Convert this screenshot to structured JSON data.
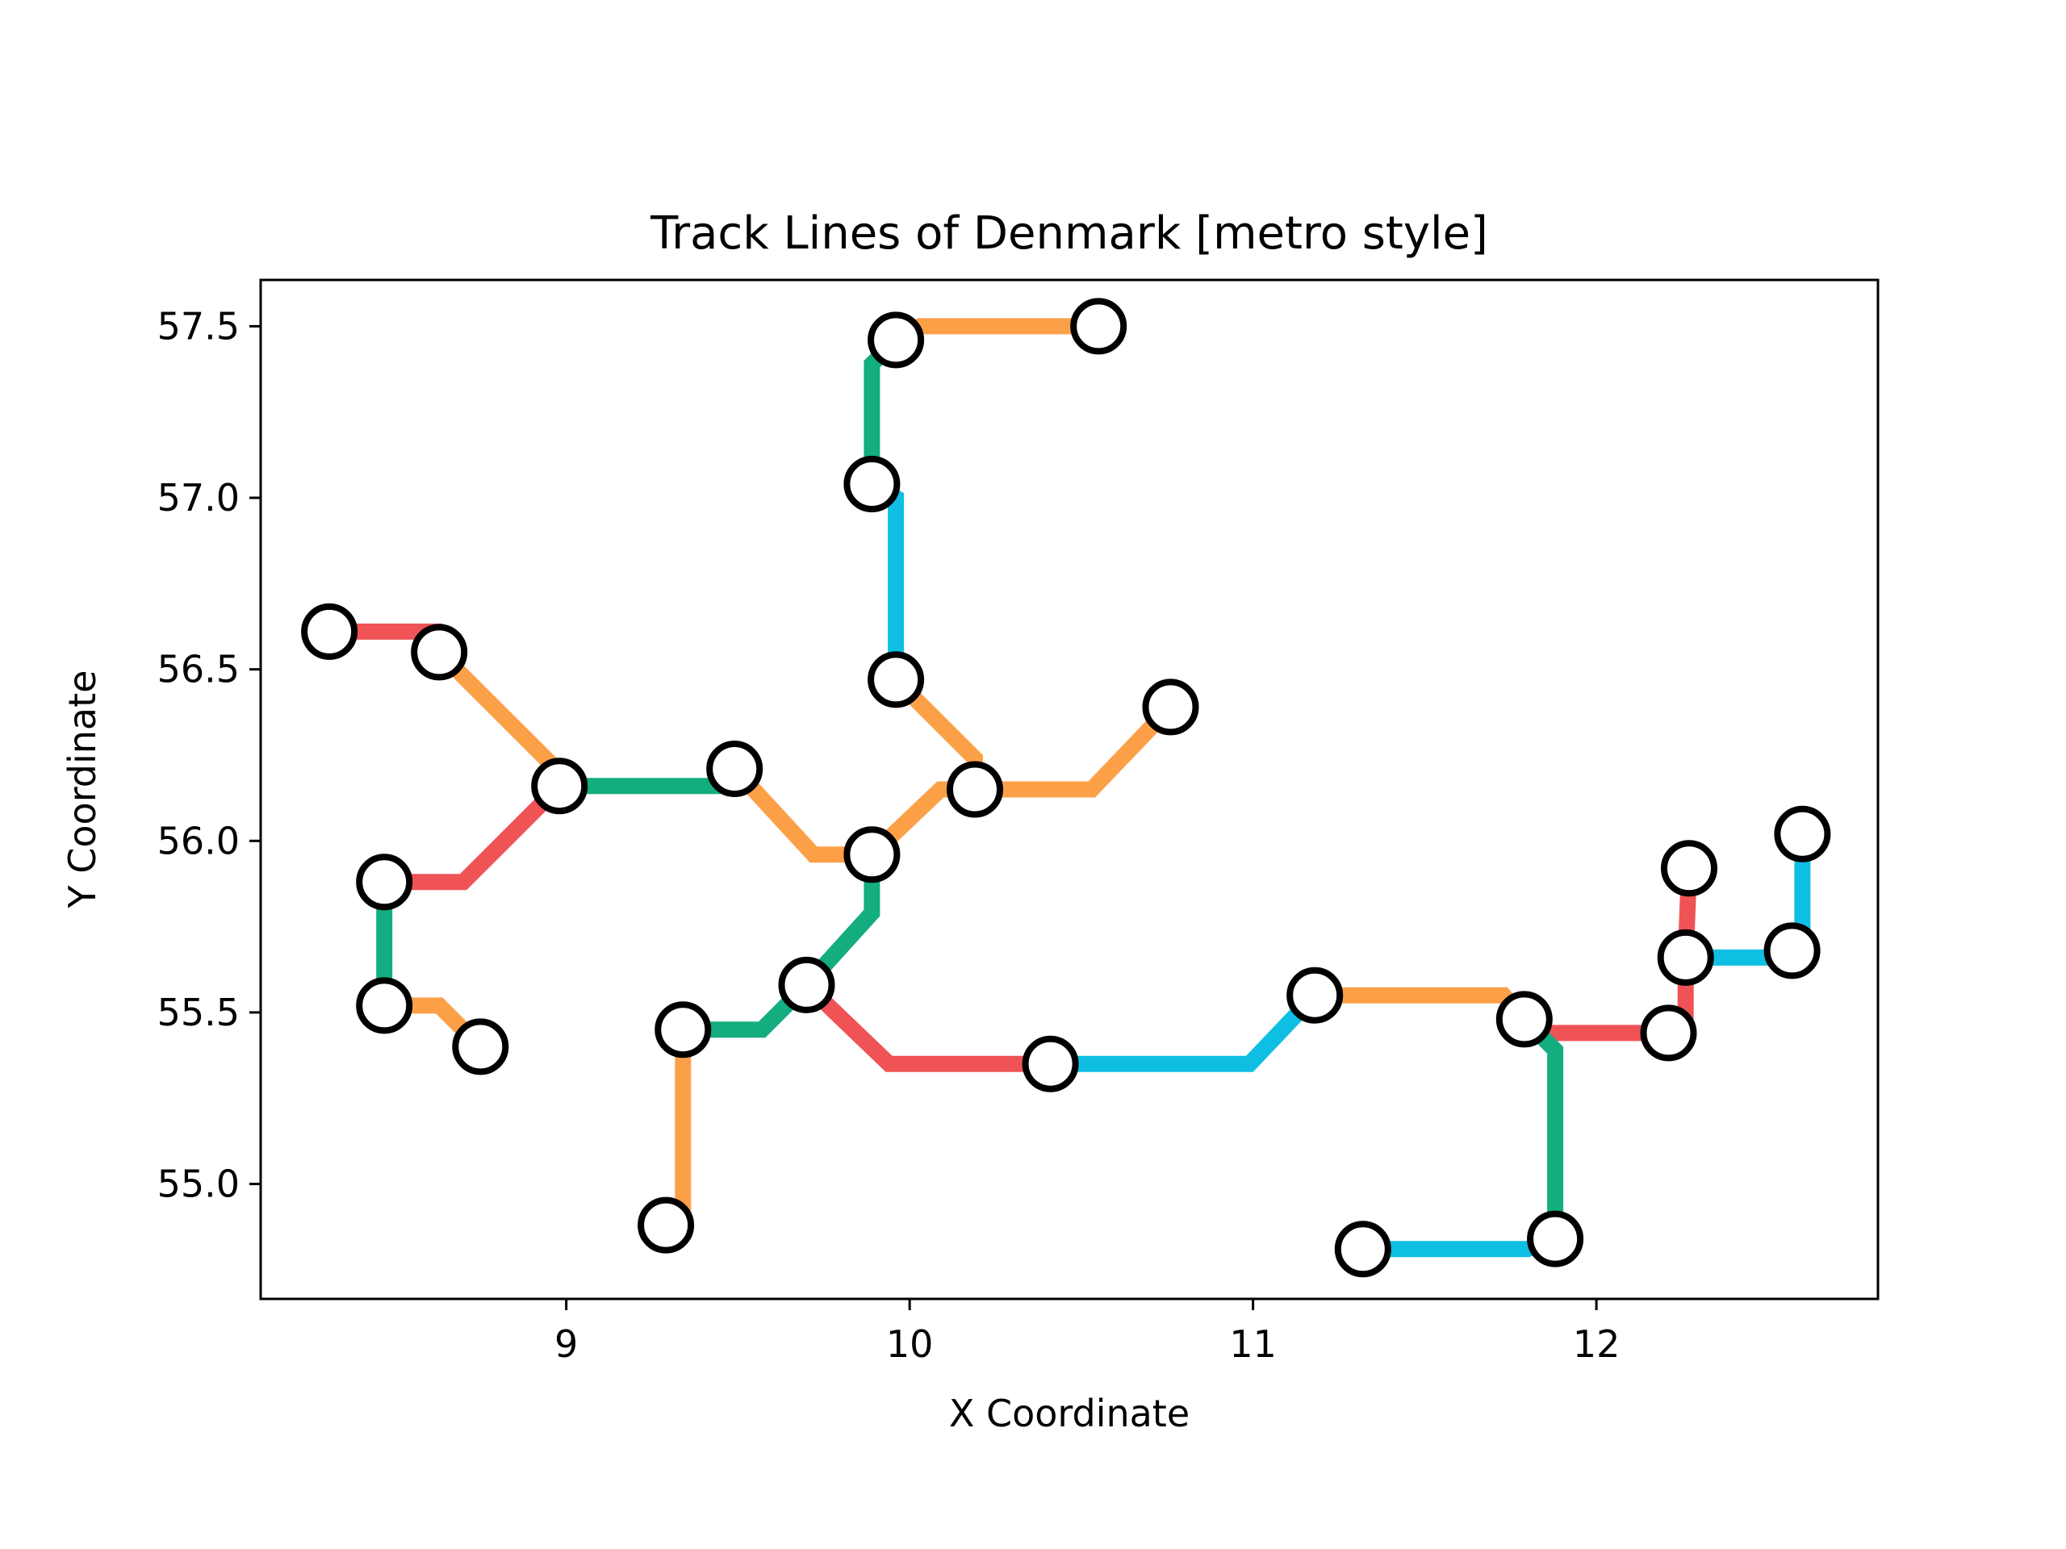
{
  "chart_data": {
    "type": "line",
    "title": "Track Lines of Denmark [metro style]",
    "xlabel": "X Coordinate",
    "ylabel": "Y Coordinate",
    "xlim": [
      8.11,
      12.82
    ],
    "ylim": [
      54.665,
      57.635
    ],
    "xticks": [
      9,
      10,
      11,
      12
    ],
    "yticks": [
      55.0,
      55.5,
      56.0,
      56.5,
      57.0,
      57.5
    ],
    "ytick_labels": [
      "55.0",
      "55.5",
      "56.0",
      "56.5",
      "57.0",
      "57.5"
    ],
    "grid": false,
    "legend": "none",
    "colors": {
      "red": "#ef5356",
      "orange": "#fca048",
      "green": "#13ad80",
      "blue": "#0fbfe3",
      "station_fill": "#ffffff",
      "station_edge": "#000000"
    },
    "segments": [
      {
        "color": "red",
        "points": [
          [
            8.31,
            56.61
          ],
          [
            8.62,
            56.61
          ],
          [
            8.63,
            56.55
          ]
        ]
      },
      {
        "color": "orange",
        "points": [
          [
            8.63,
            56.55
          ],
          [
            8.97,
            56.21
          ],
          [
            8.98,
            56.16
          ]
        ]
      },
      {
        "color": "red",
        "points": [
          [
            8.98,
            56.16
          ],
          [
            8.7,
            55.88
          ],
          [
            8.47,
            55.88
          ]
        ]
      },
      {
        "color": "green",
        "points": [
          [
            8.98,
            56.16
          ],
          [
            9.48,
            56.16
          ],
          [
            9.49,
            56.21
          ]
        ]
      },
      {
        "color": "orange",
        "points": [
          [
            9.49,
            56.21
          ],
          [
            9.72,
            55.96
          ],
          [
            9.89,
            55.96
          ]
        ]
      },
      {
        "color": "green",
        "points": [
          [
            8.47,
            55.88
          ],
          [
            8.47,
            55.52
          ]
        ]
      },
      {
        "color": "orange",
        "points": [
          [
            8.47,
            55.52
          ],
          [
            8.63,
            55.52
          ],
          [
            8.75,
            55.4
          ]
        ]
      },
      {
        "color": "orange",
        "points": [
          [
            9.89,
            55.96
          ],
          [
            10.09,
            56.15
          ],
          [
            10.19,
            56.15
          ]
        ]
      },
      {
        "color": "orange",
        "points": [
          [
            10.19,
            56.15
          ],
          [
            10.53,
            56.15
          ],
          [
            10.76,
            56.39
          ]
        ]
      },
      {
        "color": "orange",
        "points": [
          [
            10.19,
            56.15
          ],
          [
            10.19,
            56.24
          ],
          [
            9.96,
            56.47
          ]
        ]
      },
      {
        "color": "blue",
        "points": [
          [
            9.96,
            56.47
          ],
          [
            9.96,
            57.0
          ],
          [
            9.89,
            57.04
          ]
        ]
      },
      {
        "color": "green",
        "points": [
          [
            9.89,
            57.04
          ],
          [
            9.89,
            57.39
          ],
          [
            9.96,
            57.46
          ]
        ]
      },
      {
        "color": "orange",
        "points": [
          [
            9.96,
            57.46
          ],
          [
            10.03,
            57.5
          ],
          [
            10.55,
            57.5
          ]
        ]
      },
      {
        "color": "green",
        "points": [
          [
            9.89,
            55.96
          ],
          [
            9.89,
            55.79
          ],
          [
            9.7,
            55.58
          ]
        ]
      },
      {
        "color": "green",
        "points": [
          [
            9.7,
            55.58
          ],
          [
            9.57,
            55.45
          ],
          [
            9.34,
            55.45
          ]
        ]
      },
      {
        "color": "orange",
        "points": [
          [
            9.34,
            55.45
          ],
          [
            9.34,
            54.9
          ],
          [
            9.29,
            54.88
          ]
        ]
      },
      {
        "color": "red",
        "points": [
          [
            9.7,
            55.58
          ],
          [
            9.94,
            55.35
          ],
          [
            10.41,
            55.35
          ]
        ]
      },
      {
        "color": "blue",
        "points": [
          [
            10.41,
            55.35
          ],
          [
            10.99,
            55.35
          ],
          [
            11.18,
            55.55
          ]
        ]
      },
      {
        "color": "orange",
        "points": [
          [
            11.18,
            55.55
          ],
          [
            11.73,
            55.55
          ],
          [
            11.79,
            55.48
          ]
        ]
      },
      {
        "color": "red",
        "points": [
          [
            11.79,
            55.48
          ],
          [
            11.86,
            55.44
          ],
          [
            12.21,
            55.44
          ]
        ]
      },
      {
        "color": "green",
        "points": [
          [
            11.79,
            55.48
          ],
          [
            11.88,
            55.39
          ],
          [
            11.88,
            54.84
          ]
        ]
      },
      {
        "color": "blue",
        "points": [
          [
            11.88,
            54.84
          ],
          [
            11.8,
            54.81
          ],
          [
            11.32,
            54.81
          ]
        ]
      },
      {
        "color": "red",
        "points": [
          [
            12.21,
            55.44
          ],
          [
            12.26,
            55.49
          ],
          [
            12.26,
            55.66
          ],
          [
            12.27,
            55.92
          ]
        ]
      },
      {
        "color": "blue",
        "points": [
          [
            12.26,
            55.66
          ],
          [
            12.57,
            55.66
          ],
          [
            12.6,
            55.68
          ],
          [
            12.6,
            56.02
          ]
        ]
      }
    ],
    "stations": [
      [
        8.31,
        56.61
      ],
      [
        8.63,
        56.55
      ],
      [
        8.98,
        56.16
      ],
      [
        9.49,
        56.21
      ],
      [
        8.47,
        55.88
      ],
      [
        8.47,
        55.52
      ],
      [
        8.75,
        55.4
      ],
      [
        9.34,
        55.45
      ],
      [
        9.29,
        54.88
      ],
      [
        9.7,
        55.58
      ],
      [
        9.89,
        55.96
      ],
      [
        10.19,
        56.15
      ],
      [
        10.76,
        56.39
      ],
      [
        9.96,
        56.47
      ],
      [
        9.89,
        57.04
      ],
      [
        9.96,
        57.46
      ],
      [
        10.55,
        57.5
      ],
      [
        10.41,
        55.35
      ],
      [
        11.18,
        55.55
      ],
      [
        11.79,
        55.48
      ],
      [
        11.88,
        54.84
      ],
      [
        11.32,
        54.81
      ],
      [
        12.21,
        55.44
      ],
      [
        12.26,
        55.66
      ],
      [
        12.27,
        55.92
      ],
      [
        12.57,
        55.68
      ],
      [
        12.6,
        56.02
      ]
    ]
  }
}
